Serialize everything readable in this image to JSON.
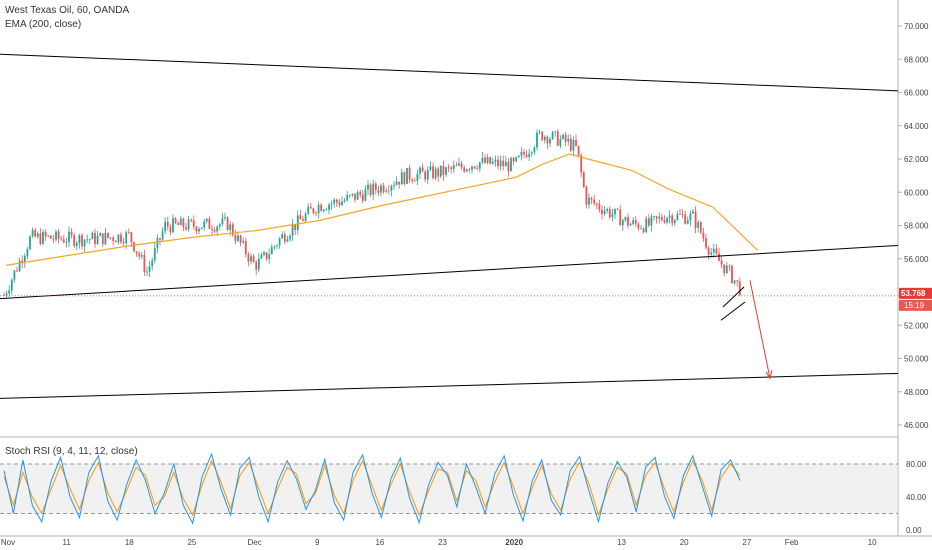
{
  "header": {
    "title": "West Texas Oil, 60, OANDA",
    "ema_label": "EMA (200, close)"
  },
  "colors": {
    "background": "#ffffff",
    "candle_up": "#26a69a",
    "candle_down": "#ef5350",
    "ema": "#f5a623",
    "trendline": "#000000",
    "projection": "#e53935",
    "price_line": "#e53935",
    "price_badge": "#e53935",
    "stoch_k": "#2196f3",
    "stoch_d": "#ff9800",
    "stoch_band": "#e8e8e8",
    "axis_text": "#444444",
    "border": "#b0b0b0"
  },
  "price_scale": {
    "ticks": [
      "70.000",
      "68.000",
      "66.000",
      "64.000",
      "62.000",
      "60.000",
      "58.000",
      "56.000",
      "54.000",
      "52.000",
      "50.000",
      "48.000",
      "46.000"
    ]
  },
  "price_badge": {
    "price": "53.768",
    "countdown": "15:19"
  },
  "time_axis": {
    "labels": [
      "Nov",
      "11",
      "18",
      "25",
      "Dec",
      "9",
      "16",
      "23",
      "2020",
      "13",
      "20",
      "27",
      "Feb",
      "10"
    ]
  },
  "stoch": {
    "label": "Stoch RSI (9, 4, 11, 12, close)",
    "ticks": [
      "80.00",
      "40.00",
      "0.00"
    ],
    "upper_band": 80,
    "lower_band": 20
  },
  "chart_data": [
    {
      "type": "candlestick",
      "title": "West Texas Oil, 60, OANDA",
      "ylim": [
        45,
        71
      ],
      "series": [
        {
          "name": "West Texas Oil",
          "x": [
            "Nov 4",
            "Nov 7",
            "Nov 11",
            "Nov 14",
            "Nov 18",
            "Nov 20",
            "Nov 22",
            "Nov 25",
            "Nov 29",
            "Dec 2",
            "Dec 3",
            "Dec 5",
            "Dec 9",
            "Dec 12",
            "Dec 16",
            "Dec 19",
            "Dec 23",
            "Dec 27",
            "Dec 31",
            "Jan 3",
            "Jan 6",
            "Jan 7",
            "Jan 8",
            "Jan 10",
            "Jan 13",
            "Jan 15",
            "Jan 17",
            "Jan 20",
            "Jan 22",
            "Jan 24",
            "Jan 27",
            "Jan 28"
          ],
          "values": [
            53.8,
            57.3,
            57.2,
            57.2,
            57.4,
            55.2,
            58.0,
            58.0,
            58.1,
            55.6,
            56.0,
            57.3,
            59.2,
            59.5,
            60.3,
            61.0,
            61.2,
            61.8,
            61.6,
            63.5,
            63.0,
            62.6,
            59.6,
            59.0,
            58.1,
            58.0,
            58.6,
            58.5,
            56.4,
            55.2,
            52.8,
            53.8
          ]
        },
        {
          "name": "EMA (200, close)",
          "x": [
            "Nov 4",
            "Nov 11",
            "Nov 18",
            "Nov 25",
            "Dec 2",
            "Dec 9",
            "Dec 16",
            "Dec 23",
            "Dec 31",
            "Jan 3",
            "Jan 6",
            "Jan 8",
            "Jan 13",
            "Jan 17",
            "Jan 22",
            "Jan 27"
          ],
          "values": [
            55.6,
            56.2,
            56.8,
            57.3,
            57.7,
            58.3,
            59.2,
            60.0,
            60.9,
            61.7,
            62.3,
            62.0,
            61.3,
            60.2,
            59.1,
            56.5
          ]
        }
      ]
    },
    {
      "type": "line",
      "title": "Stoch RSI (9, 4, 11, 12, close)",
      "ylim": [
        -5,
        100
      ],
      "series": [
        {
          "name": "K",
          "values": [
            72,
            20,
            85,
            30,
            10,
            60,
            88,
            40,
            15,
            70,
            90,
            35,
            12,
            55,
            85,
            60,
            20,
            45,
            80,
            30,
            8,
            65,
            92,
            50,
            18,
            75,
            88,
            40,
            10,
            58,
            84,
            62,
            25,
            48,
            86,
            33,
            12,
            70,
            91,
            45,
            15,
            62,
            87,
            38,
            9,
            55,
            82,
            66,
            28,
            80,
            52,
            20,
            68,
            90,
            42,
            11,
            60,
            85,
            36,
            18,
            72,
            89,
            47,
            10,
            57,
            83,
            64,
            22,
            76,
            88,
            41,
            14,
            66,
            90,
            53,
            17,
            73,
            85,
            60
          ]
        },
        {
          "name": "D",
          "values": [
            65,
            30,
            70,
            40,
            20,
            50,
            78,
            50,
            25,
            60,
            82,
            45,
            22,
            48,
            76,
            66,
            30,
            40,
            70,
            38,
            18,
            55,
            84,
            58,
            26,
            66,
            82,
            50,
            20,
            50,
            76,
            68,
            32,
            44,
            78,
            42,
            20,
            60,
            84,
            54,
            24,
            55,
            80,
            46,
            18,
            48,
            74,
            70,
            35,
            72,
            60,
            28,
            58,
            82,
            52,
            20,
            52,
            78,
            44,
            24,
            62,
            82,
            56,
            18,
            50,
            76,
            68,
            30,
            66,
            82,
            50,
            22,
            58,
            84,
            60,
            24,
            64,
            80,
            66
          ]
        }
      ]
    }
  ]
}
